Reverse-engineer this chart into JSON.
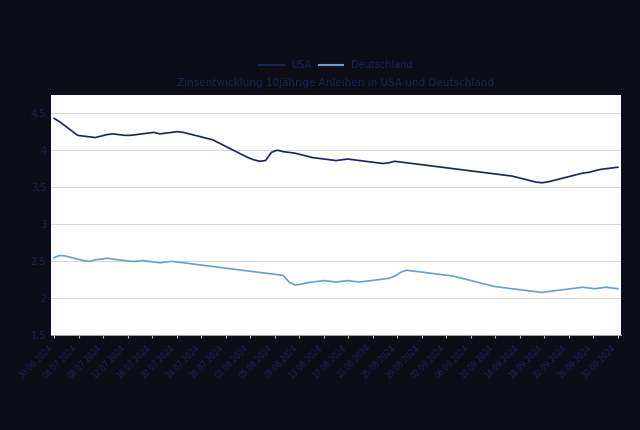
{
  "title": "Zinsentwicklung 10jährige Anleihen in USA und Deutschland",
  "legend_labels": [
    "USA",
    "Deutschland"
  ],
  "usa_color": "#1a2456",
  "de_color": "#6b9ec8",
  "background_color": "#ffffff",
  "outer_bg": "#0a0a1a",
  "grid_color": "#d0d0d0",
  "ylim": [
    1.5,
    4.75
  ],
  "yticks": [
    1.5,
    2.0,
    2.5,
    3.0,
    3.5,
    4.0,
    4.5
  ],
  "x_labels": [
    "30.06.2024",
    "04.07.2024",
    "08.07.2024",
    "12.07.2024",
    "16.07.2024",
    "20.07.2024",
    "24.07.2024",
    "28.07.2024",
    "01.08.2024",
    "05.08.2024",
    "09.08.2024",
    "13.08.2024",
    "17.08.2024",
    "21.08.2024",
    "25.08.2024",
    "29.08.2024",
    "02.09.2024",
    "06.09.2024",
    "10.09.2024",
    "14.09.2024",
    "18.09.2024",
    "22.09.2024",
    "26.09.2024",
    "30.09.2024"
  ],
  "usa_values": [
    4.43,
    4.38,
    4.32,
    4.26,
    4.2,
    4.19,
    4.18,
    4.17,
    4.19,
    4.21,
    4.22,
    4.21,
    4.2,
    4.2,
    4.21,
    4.22,
    4.23,
    4.24,
    4.22,
    4.23,
    4.24,
    4.25,
    4.24,
    4.22,
    4.2,
    4.18,
    4.16,
    4.14,
    4.1,
    4.06,
    4.02,
    3.98,
    3.94,
    3.9,
    3.87,
    3.85,
    3.86,
    3.97,
    4.0,
    3.98,
    3.97,
    3.96,
    3.94,
    3.92,
    3.9,
    3.89,
    3.88,
    3.87,
    3.86,
    3.87,
    3.88,
    3.87,
    3.86,
    3.85,
    3.84,
    3.83,
    3.82,
    3.83,
    3.85,
    3.84,
    3.83,
    3.82,
    3.81,
    3.8,
    3.79,
    3.78,
    3.77,
    3.76,
    3.75,
    3.74,
    3.73,
    3.72,
    3.71,
    3.7,
    3.69,
    3.68,
    3.67,
    3.66,
    3.65,
    3.63,
    3.61,
    3.59,
    3.57,
    3.56,
    3.57,
    3.59,
    3.61,
    3.63,
    3.65,
    3.67,
    3.69,
    3.7,
    3.72,
    3.74,
    3.75,
    3.76,
    3.77
  ],
  "de_values": [
    2.55,
    2.58,
    2.57,
    2.55,
    2.53,
    2.51,
    2.5,
    2.52,
    2.53,
    2.54,
    2.53,
    2.52,
    2.51,
    2.5,
    2.5,
    2.51,
    2.5,
    2.49,
    2.48,
    2.49,
    2.5,
    2.49,
    2.48,
    2.47,
    2.46,
    2.45,
    2.44,
    2.43,
    2.42,
    2.41,
    2.4,
    2.39,
    2.38,
    2.37,
    2.36,
    2.35,
    2.34,
    2.33,
    2.32,
    2.31,
    2.22,
    2.18,
    2.19,
    2.21,
    2.22,
    2.23,
    2.24,
    2.23,
    2.22,
    2.23,
    2.24,
    2.23,
    2.22,
    2.23,
    2.24,
    2.25,
    2.26,
    2.27,
    2.3,
    2.35,
    2.38,
    2.37,
    2.36,
    2.35,
    2.34,
    2.33,
    2.32,
    2.31,
    2.3,
    2.28,
    2.26,
    2.24,
    2.22,
    2.2,
    2.18,
    2.16,
    2.15,
    2.14,
    2.13,
    2.12,
    2.11,
    2.1,
    2.09,
    2.08,
    2.09,
    2.1,
    2.11,
    2.12,
    2.13,
    2.14,
    2.15,
    2.14,
    2.13,
    2.14,
    2.15,
    2.14,
    2.13
  ]
}
